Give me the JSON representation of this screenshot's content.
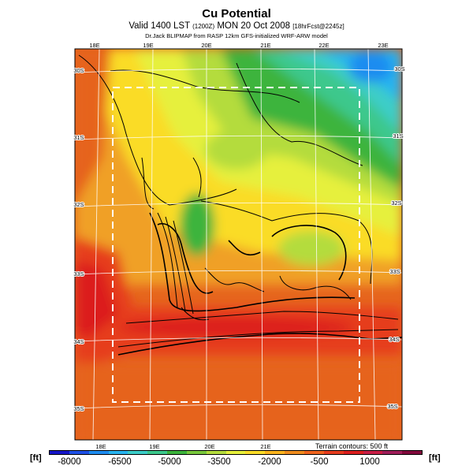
{
  "header": {
    "title": "Cu Potential",
    "valid_main": "Valid 1400 LST",
    "valid_utc": "(1200Z)",
    "valid_date": "MON 20 Oct 2008",
    "forecast_tag": "[18hrFcst@2245z]",
    "credit": "Dr.Jack BLIPMAP from RASP 12km GFS-initialized WRF-ARW model"
  },
  "map": {
    "lon_labels_top": [
      "18E",
      "19E",
      "20E",
      "21E",
      "22E",
      "23E"
    ],
    "lon_labels_bottom": [
      "18E",
      "19E",
      "20E",
      "21E"
    ],
    "lat_labels_left": [
      "30S",
      "31S",
      "32S",
      "33S",
      "34S",
      "35S"
    ],
    "lat_labels_right": [
      "30S",
      "31S",
      "32S",
      "33S",
      "34S",
      "35S"
    ],
    "terrain_note": "Terrain contours: 500 ft",
    "inner_domain_box": "white-dashed"
  },
  "legend": {
    "unit_left": "[ft]",
    "unit_right": "[ft]",
    "ticks": [
      "-8000",
      "-6500",
      "-5000",
      "-3500",
      "-2000",
      "-500",
      "1000"
    ],
    "colors": [
      "#1515c8",
      "#1e50e6",
      "#1e8cf0",
      "#28b4f0",
      "#3ccdc8",
      "#3cc88c",
      "#3cb43c",
      "#78c83c",
      "#b4dc3c",
      "#e6f03c",
      "#fadc28",
      "#fab41e",
      "#f08c1e",
      "#f0641e",
      "#e63c1e",
      "#dc1e1e",
      "#c81e46",
      "#a01e5a",
      "#820a3c"
    ]
  }
}
